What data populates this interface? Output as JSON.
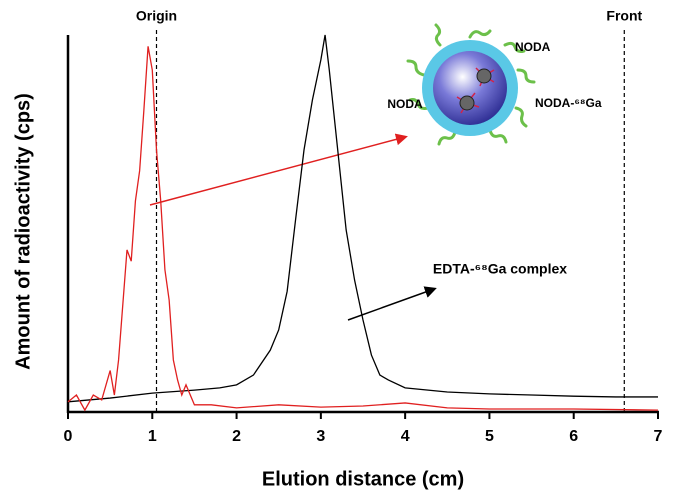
{
  "chart_data": {
    "type": "line",
    "x_label": "Elution distance (cm)",
    "y_label": "Amount of radioactivity (cps)",
    "xlim": [
      0,
      7
    ],
    "xticks": [
      0,
      1,
      2,
      3,
      4,
      5,
      6,
      7
    ],
    "ylim": [
      0,
      100
    ],
    "reference_lines": [
      {
        "label": "Origin",
        "x": 1.05
      },
      {
        "label": "Front",
        "x": 6.6
      }
    ],
    "annotations": [
      "EDTA-⁶⁸Ga complex",
      "NODA",
      "NODA",
      "NODA-⁶⁸Ga"
    ],
    "series": [
      {
        "color": "#000000",
        "x": [
          0,
          0.5,
          1.0,
          1.5,
          1.8,
          2.0,
          2.2,
          2.4,
          2.5,
          2.6,
          2.7,
          2.8,
          2.9,
          3.0,
          3.05,
          3.1,
          3.2,
          3.3,
          3.4,
          3.5,
          3.6,
          3.7,
          3.8,
          4.0,
          4.5,
          5.0,
          5.5,
          6.0,
          6.5,
          7.0
        ],
        "values": [
          2.7,
          3.7,
          5,
          5.8,
          6.4,
          7.2,
          9.8,
          16.4,
          21.8,
          32,
          51,
          69.5,
          82.8,
          93.4,
          100,
          90.7,
          69.5,
          48.3,
          35,
          24.4,
          15.1,
          9.8,
          8.5,
          6.4,
          5.3,
          4.8,
          4.5,
          4.2,
          4,
          4
        ]
      },
      {
        "color": "#e02020",
        "x": [
          0,
          0.1,
          0.2,
          0.3,
          0.4,
          0.5,
          0.55,
          0.6,
          0.7,
          0.75,
          0.8,
          0.85,
          0.9,
          0.95,
          1.0,
          1.05,
          1.1,
          1.15,
          1.2,
          1.25,
          1.3,
          1.35,
          1.4,
          1.5,
          1.7,
          2.0,
          2.5,
          3.0,
          3.5,
          4.0,
          4.5,
          5.0,
          6.0,
          7.0
        ],
        "values": [
          2.7,
          4.5,
          0.5,
          4.5,
          3.2,
          11,
          4.5,
          13.8,
          43,
          40,
          56,
          64,
          80,
          97,
          90.7,
          69.5,
          56,
          37.7,
          29.7,
          13.8,
          8.5,
          4.5,
          7.2,
          1.9,
          1.9,
          1.1,
          1.9,
          1.3,
          1.6,
          2.4,
          1.1,
          0.8,
          0.8,
          0.5
        ]
      }
    ]
  }
}
